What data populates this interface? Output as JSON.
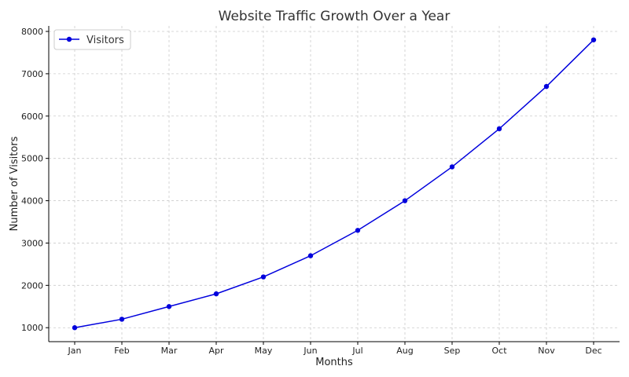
{
  "chart_data": {
    "type": "line",
    "title": "Website Traffic Growth Over a Year",
    "xlabel": "Months",
    "ylabel": "Number of Visitors",
    "categories": [
      "Jan",
      "Feb",
      "Mar",
      "Apr",
      "May",
      "Jun",
      "Jul",
      "Aug",
      "Sep",
      "Oct",
      "Nov",
      "Dec"
    ],
    "series": [
      {
        "name": "Visitors",
        "color": "#0000dd",
        "marker": "circle",
        "values": [
          1000,
          1200,
          1500,
          1800,
          2200,
          2700,
          3300,
          4000,
          4800,
          5700,
          6700,
          7800
        ]
      }
    ],
    "ylim": [
      670,
      8130
    ],
    "yticks": [
      1000,
      2000,
      3000,
      4000,
      5000,
      6000,
      7000,
      8000
    ],
    "grid": true,
    "legend_position": "top-left"
  }
}
